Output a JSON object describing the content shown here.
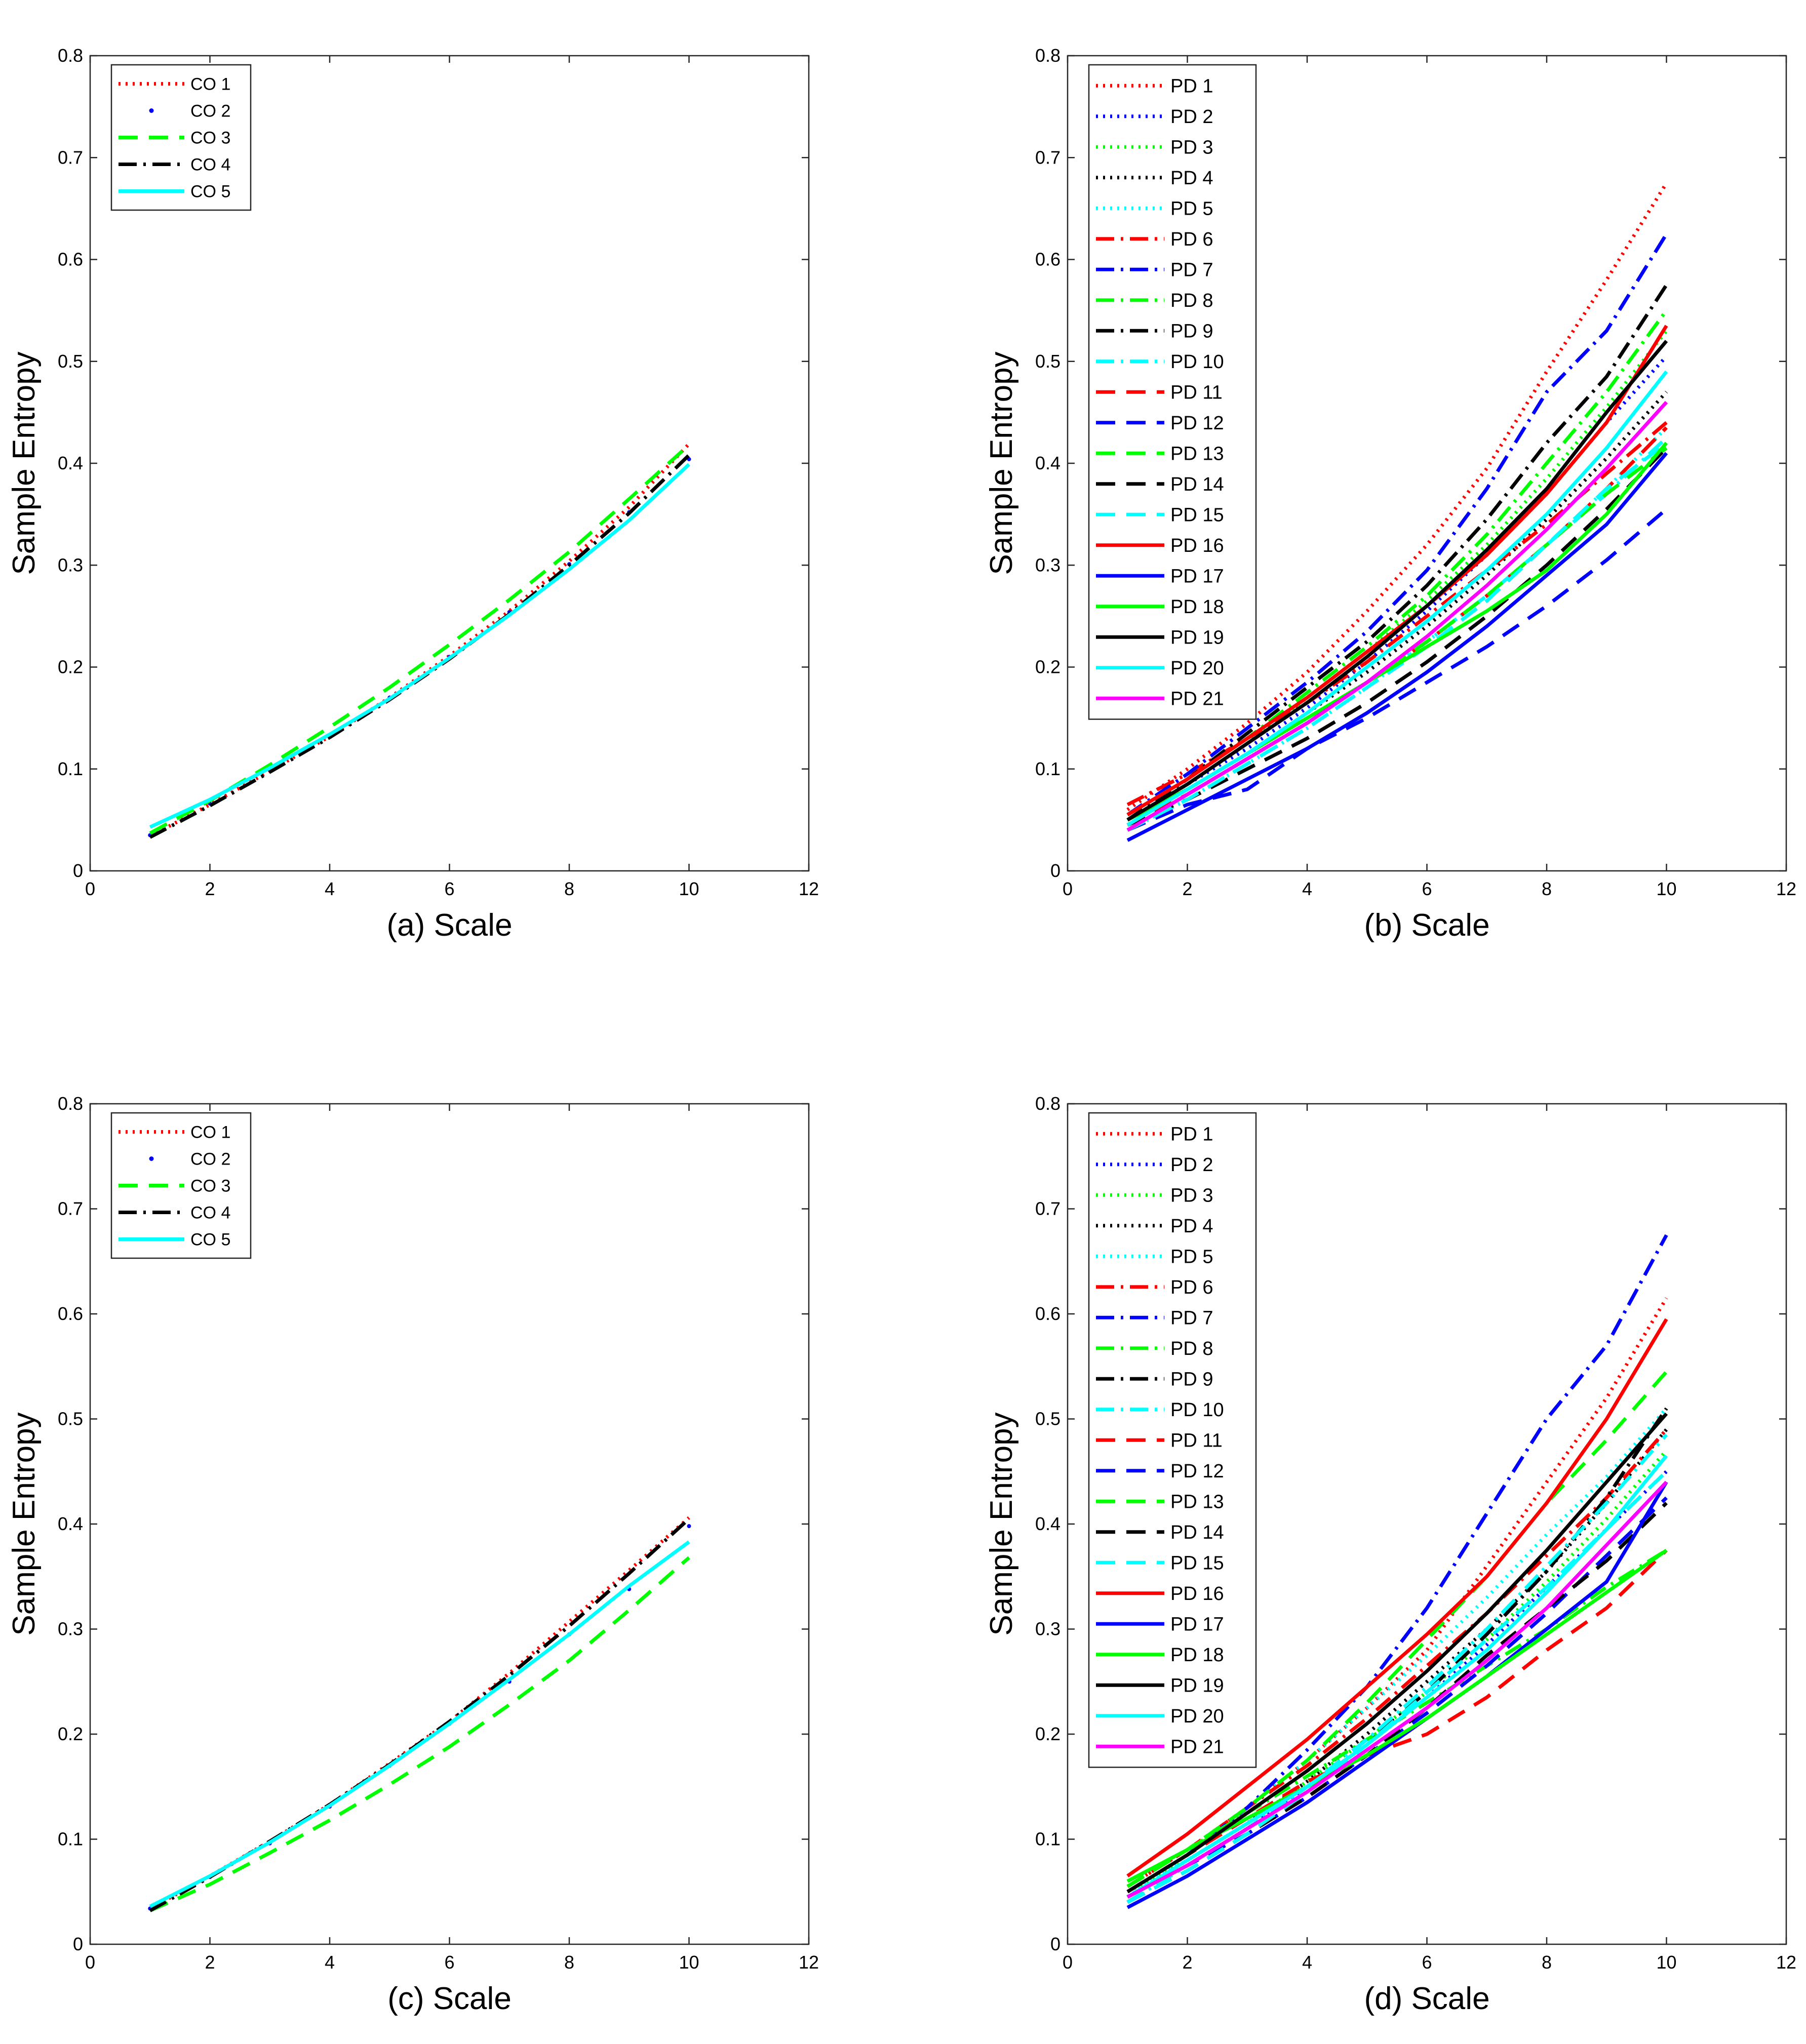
{
  "chart_data": [
    {
      "type": "line",
      "panel": "a",
      "xlabel": "(a) Scale",
      "ylabel": "Sample Entropy",
      "xlim": [
        0,
        12
      ],
      "ylim": [
        0,
        0.8
      ],
      "xticks": [
        0,
        2,
        4,
        6,
        8,
        10,
        12
      ],
      "yticks": [
        0,
        0.1,
        0.2,
        0.3,
        0.4,
        0.5,
        0.6,
        0.7,
        0.8
      ],
      "legend_position": "top-left",
      "x": [
        1,
        2,
        3,
        4,
        5,
        6,
        7,
        8,
        9,
        10
      ],
      "series": [
        {
          "name": "CO 1",
          "color": "#ff0000",
          "style": "dotted",
          "values": [
            0.034,
            0.065,
            0.098,
            0.132,
            0.17,
            0.211,
            0.255,
            0.304,
            0.357,
            0.419
          ]
        },
        {
          "name": "CO 2",
          "color": "#0000ff",
          "style": "point",
          "values": [
            0.035,
            0.066,
            0.099,
            0.133,
            0.17,
            0.21,
            0.254,
            0.301,
            0.352,
            0.404
          ]
        },
        {
          "name": "CO 3",
          "color": "#00ff00",
          "style": "dashed",
          "values": [
            0.037,
            0.069,
            0.104,
            0.141,
            0.18,
            0.222,
            0.266,
            0.313,
            0.365,
            0.418
          ]
        },
        {
          "name": "CO 4",
          "color": "#000000",
          "style": "dashdot",
          "values": [
            0.033,
            0.064,
            0.097,
            0.131,
            0.168,
            0.208,
            0.252,
            0.3,
            0.351,
            0.408
          ]
        },
        {
          "name": "CO 5",
          "color": "#00ffff",
          "style": "solid",
          "values": [
            0.043,
            0.07,
            0.101,
            0.134,
            0.169,
            0.209,
            0.251,
            0.296,
            0.344,
            0.399
          ]
        }
      ]
    },
    {
      "type": "line",
      "panel": "b",
      "xlabel": "(b) Scale",
      "ylabel": "Sample Entropy",
      "xlim": [
        0,
        12
      ],
      "ylim": [
        0,
        0.8
      ],
      "xticks": [
        0,
        2,
        4,
        6,
        8,
        10,
        12
      ],
      "yticks": [
        0,
        0.1,
        0.2,
        0.3,
        0.4,
        0.5,
        0.6,
        0.7,
        0.8
      ],
      "legend_position": "top-left",
      "x": [
        1,
        2,
        3,
        4,
        5,
        6,
        7,
        8,
        9,
        10
      ],
      "series": [
        {
          "name": "PD 1",
          "color": "#ff0000",
          "style": "dotted",
          "values": [
            0.06,
            0.1,
            0.145,
            0.195,
            0.255,
            0.32,
            0.395,
            0.49,
            0.58,
            0.675
          ]
        },
        {
          "name": "PD 2",
          "color": "#0000ff",
          "style": "dotted",
          "values": [
            0.05,
            0.085,
            0.12,
            0.16,
            0.205,
            0.255,
            0.31,
            0.37,
            0.44,
            0.505
          ]
        },
        {
          "name": "PD 3",
          "color": "#00ff00",
          "style": "dotted",
          "values": [
            0.05,
            0.085,
            0.125,
            0.17,
            0.215,
            0.265,
            0.32,
            0.385,
            0.455,
            0.53
          ]
        },
        {
          "name": "PD 4",
          "color": "#000000",
          "style": "dotted",
          "values": [
            0.045,
            0.08,
            0.115,
            0.155,
            0.195,
            0.24,
            0.29,
            0.345,
            0.405,
            0.47
          ]
        },
        {
          "name": "PD 5",
          "color": "#00ffff",
          "style": "dotted",
          "values": [
            0.04,
            0.07,
            0.105,
            0.14,
            0.18,
            0.225,
            0.27,
            0.32,
            0.375,
            0.435
          ]
        },
        {
          "name": "PD 6",
          "color": "#ff0000",
          "style": "dashdot",
          "values": [
            0.065,
            0.095,
            0.13,
            0.165,
            0.205,
            0.25,
            0.295,
            0.34,
            0.39,
            0.44
          ]
        },
        {
          "name": "PD 7",
          "color": "#0000ff",
          "style": "dashdot",
          "values": [
            0.055,
            0.095,
            0.14,
            0.185,
            0.235,
            0.295,
            0.375,
            0.47,
            0.53,
            0.625
          ]
        },
        {
          "name": "PD 8",
          "color": "#00ff00",
          "style": "dashdot",
          "values": [
            0.055,
            0.09,
            0.13,
            0.175,
            0.22,
            0.27,
            0.33,
            0.4,
            0.47,
            0.55
          ]
        },
        {
          "name": "PD 9",
          "color": "#000000",
          "style": "dashdot",
          "values": [
            0.05,
            0.09,
            0.135,
            0.18,
            0.225,
            0.28,
            0.345,
            0.42,
            0.485,
            0.575
          ]
        },
        {
          "name": "PD 10",
          "color": "#00ffff",
          "style": "dashdot",
          "values": [
            0.04,
            0.075,
            0.11,
            0.145,
            0.185,
            0.225,
            0.27,
            0.32,
            0.37,
            0.425
          ]
        },
        {
          "name": "PD 11",
          "color": "#ff0000",
          "style": "dashed",
          "values": [
            0.045,
            0.075,
            0.11,
            0.145,
            0.185,
            0.225,
            0.27,
            0.32,
            0.375,
            0.435
          ]
        },
        {
          "name": "PD 12",
          "color": "#0000ff",
          "style": "dashed",
          "values": [
            0.04,
            0.065,
            0.08,
            0.12,
            0.15,
            0.185,
            0.22,
            0.26,
            0.305,
            0.355
          ]
        },
        {
          "name": "PD 13",
          "color": "#00ff00",
          "style": "dashed",
          "values": [
            0.05,
            0.08,
            0.115,
            0.15,
            0.185,
            0.225,
            0.27,
            0.32,
            0.37,
            0.415
          ]
        },
        {
          "name": "PD 14",
          "color": "#000000",
          "style": "dashed",
          "values": [
            0.045,
            0.07,
            0.1,
            0.13,
            0.165,
            0.205,
            0.25,
            0.3,
            0.355,
            0.415
          ]
        },
        {
          "name": "PD 15",
          "color": "#00ffff",
          "style": "dashed",
          "values": [
            0.04,
            0.07,
            0.105,
            0.14,
            0.18,
            0.22,
            0.265,
            0.32,
            0.375,
            0.42
          ]
        },
        {
          "name": "PD 16",
          "color": "#ff0000",
          "style": "solid",
          "values": [
            0.055,
            0.09,
            0.13,
            0.17,
            0.215,
            0.26,
            0.31,
            0.37,
            0.44,
            0.535
          ]
        },
        {
          "name": "PD 17",
          "color": "#0000ff",
          "style": "solid",
          "values": [
            0.03,
            0.06,
            0.09,
            0.12,
            0.155,
            0.195,
            0.24,
            0.29,
            0.34,
            0.41
          ]
        },
        {
          "name": "PD 18",
          "color": "#00ff00",
          "style": "solid",
          "values": [
            0.05,
            0.08,
            0.115,
            0.15,
            0.185,
            0.22,
            0.255,
            0.295,
            0.35,
            0.42
          ]
        },
        {
          "name": "PD 19",
          "color": "#000000",
          "style": "solid",
          "values": [
            0.05,
            0.085,
            0.125,
            0.165,
            0.21,
            0.26,
            0.315,
            0.375,
            0.45,
            0.52
          ]
        },
        {
          "name": "PD 20",
          "color": "#00ffff",
          "style": "solid",
          "values": [
            0.045,
            0.08,
            0.115,
            0.155,
            0.2,
            0.245,
            0.295,
            0.35,
            0.415,
            0.49
          ]
        },
        {
          "name": "PD 21",
          "color": "#ff00ff",
          "style": "solid",
          "values": [
            0.04,
            0.075,
            0.11,
            0.145,
            0.185,
            0.23,
            0.28,
            0.335,
            0.395,
            0.46
          ]
        }
      ]
    },
    {
      "type": "line",
      "panel": "c",
      "xlabel": "(c) Scale",
      "ylabel": "Sample Entropy",
      "xlim": [
        0,
        12
      ],
      "ylim": [
        0,
        0.8
      ],
      "xticks": [
        0,
        2,
        4,
        6,
        8,
        10,
        12
      ],
      "yticks": [
        0,
        0.1,
        0.2,
        0.3,
        0.4,
        0.5,
        0.6,
        0.7,
        0.8
      ],
      "legend_position": "top-left",
      "x": [
        1,
        2,
        3,
        4,
        5,
        6,
        7,
        8,
        9,
        10
      ],
      "series": [
        {
          "name": "CO 1",
          "color": "#ff0000",
          "style": "dotted",
          "values": [
            0.034,
            0.065,
            0.098,
            0.133,
            0.172,
            0.212,
            0.258,
            0.307,
            0.356,
            0.406
          ]
        },
        {
          "name": "CO 2",
          "color": "#0000ff",
          "style": "point",
          "values": [
            0.034,
            0.064,
            0.096,
            0.131,
            0.17,
            0.21,
            0.25,
            0.295,
            0.338,
            0.398
          ]
        },
        {
          "name": "CO 3",
          "color": "#00ff00",
          "style": "dashed",
          "values": [
            0.032,
            0.057,
            0.087,
            0.118,
            0.152,
            0.188,
            0.228,
            0.27,
            0.318,
            0.368
          ]
        },
        {
          "name": "CO 4",
          "color": "#000000",
          "style": "dashdot",
          "values": [
            0.032,
            0.064,
            0.098,
            0.133,
            0.171,
            0.212,
            0.256,
            0.303,
            0.353,
            0.405
          ]
        },
        {
          "name": "CO 5",
          "color": "#00ffff",
          "style": "solid",
          "values": [
            0.036,
            0.065,
            0.097,
            0.132,
            0.17,
            0.21,
            0.252,
            0.295,
            0.341,
            0.383
          ]
        }
      ]
    },
    {
      "type": "line",
      "panel": "d",
      "xlabel": "(d) Scale",
      "ylabel": "Sample Entropy",
      "xlim": [
        0,
        12
      ],
      "ylim": [
        0,
        0.8
      ],
      "xticks": [
        0,
        2,
        4,
        6,
        8,
        10,
        12
      ],
      "yticks": [
        0,
        0.1,
        0.2,
        0.3,
        0.4,
        0.5,
        0.6,
        0.7,
        0.8
      ],
      "legend_position": "top-left",
      "x": [
        1,
        2,
        3,
        4,
        5,
        6,
        7,
        8,
        9,
        10
      ],
      "series": [
        {
          "name": "PD 1",
          "color": "#ff0000",
          "style": "dotted",
          "values": [
            0.055,
            0.09,
            0.13,
            0.175,
            0.225,
            0.28,
            0.36,
            0.44,
            0.52,
            0.615
          ]
        },
        {
          "name": "PD 2",
          "color": "#0000ff",
          "style": "dotted",
          "values": [
            0.045,
            0.075,
            0.11,
            0.15,
            0.19,
            0.235,
            0.285,
            0.34,
            0.395,
            0.45
          ]
        },
        {
          "name": "PD 3",
          "color": "#00ff00",
          "style": "dotted",
          "values": [
            0.05,
            0.08,
            0.115,
            0.155,
            0.195,
            0.24,
            0.29,
            0.345,
            0.405,
            0.47
          ]
        },
        {
          "name": "PD 4",
          "color": "#000000",
          "style": "dotted",
          "values": [
            0.045,
            0.08,
            0.115,
            0.155,
            0.2,
            0.25,
            0.3,
            0.355,
            0.42,
            0.49
          ]
        },
        {
          "name": "PD 5",
          "color": "#00ffff",
          "style": "dotted",
          "values": [
            0.045,
            0.085,
            0.13,
            0.175,
            0.225,
            0.275,
            0.33,
            0.39,
            0.445,
            0.51
          ]
        },
        {
          "name": "PD 6",
          "color": "#ff0000",
          "style": "dashdot",
          "values": [
            0.055,
            0.09,
            0.13,
            0.17,
            0.215,
            0.265,
            0.315,
            0.37,
            0.425,
            0.49
          ]
        },
        {
          "name": "PD 7",
          "color": "#0000ff",
          "style": "dashdot",
          "values": [
            0.05,
            0.085,
            0.13,
            0.185,
            0.245,
            0.32,
            0.41,
            0.5,
            0.57,
            0.675
          ]
        },
        {
          "name": "PD 8",
          "color": "#00ff00",
          "style": "dashdot",
          "values": [
            0.06,
            0.09,
            0.125,
            0.16,
            0.195,
            0.23,
            0.265,
            0.3,
            0.34,
            0.375
          ]
        },
        {
          "name": "PD 9",
          "color": "#000000",
          "style": "dashdot",
          "values": [
            0.04,
            0.075,
            0.11,
            0.15,
            0.195,
            0.24,
            0.295,
            0.355,
            0.425,
            0.51
          ]
        },
        {
          "name": "PD 10",
          "color": "#00ffff",
          "style": "dashdot",
          "values": [
            0.04,
            0.075,
            0.11,
            0.15,
            0.195,
            0.245,
            0.3,
            0.36,
            0.42,
            0.485
          ]
        },
        {
          "name": "PD 11",
          "color": "#ff0000",
          "style": "dashed",
          "values": [
            0.05,
            0.085,
            0.12,
            0.155,
            0.18,
            0.2,
            0.235,
            0.28,
            0.32,
            0.375
          ]
        },
        {
          "name": "PD 12",
          "color": "#0000ff",
          "style": "dashed",
          "values": [
            0.045,
            0.075,
            0.105,
            0.14,
            0.18,
            0.22,
            0.265,
            0.315,
            0.37,
            0.425
          ]
        },
        {
          "name": "PD 13",
          "color": "#00ff00",
          "style": "dashed",
          "values": [
            0.055,
            0.09,
            0.13,
            0.175,
            0.23,
            0.29,
            0.35,
            0.42,
            0.48,
            0.545
          ]
        },
        {
          "name": "PD 14",
          "color": "#000000",
          "style": "dashed",
          "values": [
            0.04,
            0.07,
            0.105,
            0.14,
            0.18,
            0.225,
            0.275,
            0.32,
            0.365,
            0.42
          ]
        },
        {
          "name": "PD 15",
          "color": "#00ffff",
          "style": "dashed",
          "values": [
            0.04,
            0.07,
            0.105,
            0.145,
            0.19,
            0.24,
            0.29,
            0.34,
            0.395,
            0.45
          ]
        },
        {
          "name": "PD 16",
          "color": "#ff0000",
          "style": "solid",
          "values": [
            0.065,
            0.105,
            0.15,
            0.195,
            0.245,
            0.295,
            0.35,
            0.42,
            0.5,
            0.595
          ]
        },
        {
          "name": "PD 17",
          "color": "#0000ff",
          "style": "solid",
          "values": [
            0.035,
            0.065,
            0.1,
            0.135,
            0.175,
            0.215,
            0.255,
            0.3,
            0.345,
            0.44
          ]
        },
        {
          "name": "PD 18",
          "color": "#00ff00",
          "style": "solid",
          "values": [
            0.06,
            0.09,
            0.12,
            0.15,
            0.18,
            0.215,
            0.255,
            0.295,
            0.335,
            0.375
          ]
        },
        {
          "name": "PD 19",
          "color": "#000000",
          "style": "solid",
          "values": [
            0.05,
            0.085,
            0.125,
            0.165,
            0.21,
            0.26,
            0.315,
            0.375,
            0.44,
            0.505
          ]
        },
        {
          "name": "PD 20",
          "color": "#00ffff",
          "style": "solid",
          "values": [
            0.045,
            0.08,
            0.115,
            0.15,
            0.19,
            0.235,
            0.28,
            0.335,
            0.395,
            0.465
          ]
        },
        {
          "name": "PD 21",
          "color": "#ff00ff",
          "style": "solid",
          "values": [
            0.045,
            0.075,
            0.11,
            0.145,
            0.185,
            0.225,
            0.27,
            0.32,
            0.38,
            0.44
          ]
        }
      ]
    }
  ]
}
